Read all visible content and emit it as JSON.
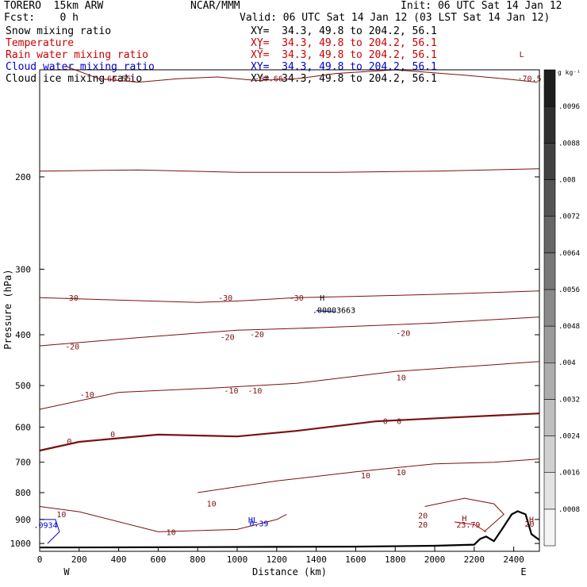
{
  "header": {
    "model": "TORERO  15km ARW",
    "org": "NCAR/MMM",
    "init": "Init: 06 UTC Sat 14 Jan 12",
    "fcst": "Fcst:    0 h",
    "valid": "Valid: 06 UTC Sat 14 Jan 12 (03 LST Sat 14 Jan 12)"
  },
  "fields": [
    {
      "name": "Snow mixing ratio",
      "xy": "",
      "color": "#000000"
    },
    {
      "name": "Temperature",
      "xy": "XY=  34.3, 49.8 to 204.2, 56.1",
      "color": "#cc0000"
    },
    {
      "name": "Rain water mixing ratio",
      "xy": "XY=  34.3, 49.8 to 204.2, 56.1",
      "color": "#cc0000"
    },
    {
      "name": "Cloud water mixing ratio",
      "xy": "XY=  34.3, 49.8 to 204.2, 56.1",
      "color": "#0000cc"
    },
    {
      "name": "Cloud ice mixing ratio",
      "xy": "XY=  34.3, 49.8 to 204.2, 56.1",
      "color": "#000000"
    }
  ],
  "snow_xy": "XY=  34.3, 49.8 to 204.2, 56.1",
  "colorbar": {
    "unit": "g kg⁻¹",
    "labels": [
      ".0008",
      ".0016",
      ".0024",
      ".0032",
      ".004",
      ".0048",
      ".0056",
      ".0064",
      ".0072",
      ".008",
      ".0088",
      ".0096"
    ]
  },
  "chart_data": {
    "type": "contour",
    "xlabel": "Distance (km)",
    "ylabel": "Pressure (hPa)",
    "xlim": [
      0,
      2530
    ],
    "ylim": [
      1035,
      125
    ],
    "x_ticks": [
      0,
      200,
      400,
      600,
      800,
      1000,
      1200,
      1400,
      1600,
      1800,
      2000,
      2200,
      2400
    ],
    "y_ticks": [
      200,
      300,
      400,
      500,
      600,
      700,
      800,
      900,
      1000
    ],
    "y_scale": "log",
    "endpoints": {
      "left": "W",
      "right": "E"
    },
    "terrain": [
      [
        0,
        1018
      ],
      [
        400,
        1017
      ],
      [
        800,
        1016
      ],
      [
        1200,
        1015
      ],
      [
        1600,
        1014
      ],
      [
        2000,
        1010
      ],
      [
        2200,
        1005
      ],
      [
        2230,
        980
      ],
      [
        2260,
        970
      ],
      [
        2300,
        990
      ],
      [
        2340,
        940
      ],
      [
        2390,
        880
      ],
      [
        2420,
        868
      ],
      [
        2460,
        880
      ],
      [
        2490,
        960
      ],
      [
        2530,
        985
      ]
    ],
    "temperature_contours": [
      {
        "label": "-66.55",
        "points": [
          [
            130,
            123
          ],
          [
            300,
            130
          ],
          [
            500,
            132
          ],
          [
            700,
            130
          ],
          [
            900,
            129
          ],
          [
            1100,
            131
          ],
          [
            1300,
            130
          ],
          [
            1500,
            127
          ],
          [
            1800,
            125
          ],
          [
            2150,
            128
          ],
          [
            2350,
            130
          ],
          [
            2520,
            132
          ]
        ]
      },
      {
        "label": "-30",
        "points": [
          [
            0,
            195
          ],
          [
            500,
            194
          ],
          [
            1000,
            196
          ],
          [
            1500,
            196
          ],
          [
            2000,
            195
          ],
          [
            2530,
            193
          ]
        ]
      },
      {
        "label": "-30",
        "points": [
          [
            0,
            340
          ],
          [
            800,
            347
          ],
          [
            1000,
            345
          ],
          [
            1300,
            340
          ],
          [
            1600,
            338
          ],
          [
            2000,
            335
          ],
          [
            2530,
            330
          ]
        ]
      },
      {
        "label": "-20",
        "points": [
          [
            0,
            420
          ],
          [
            500,
            405
          ],
          [
            1000,
            392
          ],
          [
            1400,
            388
          ],
          [
            2000,
            380
          ],
          [
            2530,
            370
          ]
        ]
      },
      {
        "label": "-10",
        "points": [
          [
            0,
            555
          ],
          [
            400,
            515
          ],
          [
            900,
            505
          ],
          [
            1300,
            495
          ],
          [
            1800,
            470
          ],
          [
            2530,
            450
          ]
        ]
      },
      {
        "label": "0",
        "points": [
          [
            0,
            665
          ],
          [
            200,
            640
          ],
          [
            600,
            620
          ],
          [
            1000,
            625
          ],
          [
            1300,
            610
          ],
          [
            1700,
            585
          ],
          [
            2100,
            575
          ],
          [
            2530,
            565
          ]
        ]
      },
      {
        "label": "10",
        "points": [
          [
            800,
            800
          ],
          [
            1200,
            760
          ],
          [
            1600,
            730
          ],
          [
            2000,
            705
          ],
          [
            2300,
            700
          ],
          [
            2530,
            690
          ]
        ]
      },
      {
        "label": "10",
        "points": [
          [
            0,
            850
          ],
          [
            200,
            870
          ],
          [
            600,
            950
          ],
          [
            1000,
            940
          ],
          [
            1200,
            900
          ],
          [
            1250,
            880
          ]
        ]
      },
      {
        "label": "20",
        "points": [
          [
            1950,
            850
          ],
          [
            2150,
            820
          ],
          [
            2300,
            840
          ],
          [
            2350,
            880
          ],
          [
            2250,
            950
          ]
        ]
      }
    ],
    "rain_water_contours": [
      {
        "label": "23.79",
        "points": [
          [
            2100,
            910
          ],
          [
            2200,
            920
          ],
          [
            2260,
            950
          ]
        ]
      }
    ],
    "cloud_water_contours": [
      {
        "label": ".00003663",
        "points": [
          [
            1400,
            360
          ],
          [
            1500,
            362
          ]
        ]
      },
      {
        "label": ".0934",
        "points": [
          [
            0,
            900
          ],
          [
            80,
            900
          ],
          [
            100,
            950
          ],
          [
            40,
            1000
          ]
        ]
      }
    ],
    "labels": [
      {
        "text": "-66.55",
        "x": 390,
        "p": 130
      },
      {
        "text": "-67.66",
        "x": 1160,
        "p": 130
      },
      {
        "text": "-70.5",
        "x": 2480,
        "p": 130
      },
      {
        "text": "L",
        "x": 1120,
        "p": 113
      },
      {
        "text": "L",
        "x": 2440,
        "p": 117
      },
      {
        "text": "-30",
        "x": 160,
        "p": 341
      },
      {
        "text": "-30",
        "x": 940,
        "p": 341
      },
      {
        "text": "-30",
        "x": 1300,
        "p": 341
      },
      {
        "text": "H",
        "x": 1430,
        "p": 341
      },
      {
        "text": ".00003663",
        "x": 1490,
        "p": 360
      },
      {
        "text": "-20",
        "x": 165,
        "p": 422
      },
      {
        "text": "-20",
        "x": 950,
        "p": 405
      },
      {
        "text": "-20",
        "x": 1100,
        "p": 400
      },
      {
        "text": "-20",
        "x": 1840,
        "p": 398
      },
      {
        "text": "-10",
        "x": 240,
        "p": 521
      },
      {
        "text": "-10",
        "x": 970,
        "p": 512
      },
      {
        "text": "-10",
        "x": 1090,
        "p": 512
      },
      {
        "text": "10",
        "x": 1830,
        "p": 484
      },
      {
        "text": "0",
        "x": 150,
        "p": 640
      },
      {
        "text": "0",
        "x": 370,
        "p": 620
      },
      {
        "text": "0",
        "x": 1750,
        "p": 586
      },
      {
        "text": "0",
        "x": 1820,
        "p": 586
      },
      {
        "text": "10",
        "x": 1650,
        "p": 743
      },
      {
        "text": "10",
        "x": 1830,
        "p": 733
      },
      {
        "text": "10",
        "x": 870,
        "p": 842
      },
      {
        "text": "10",
        "x": 110,
        "p": 882
      },
      {
        "text": "10",
        "x": 665,
        "p": 954
      },
      {
        "text": "HL",
        "x": 1080,
        "p": 903
      },
      {
        "text": "0.39",
        "x": 1110,
        "p": 918
      },
      {
        "text": "20",
        "x": 1940,
        "p": 886
      },
      {
        "text": "20",
        "x": 1940,
        "p": 922
      },
      {
        "text": "H",
        "x": 2150,
        "p": 897
      },
      {
        "text": "23.79",
        "x": 2170,
        "p": 922
      },
      {
        "text": "H",
        "x": 2490,
        "p": 902
      },
      {
        "text": "20",
        "x": 2480,
        "p": 920
      },
      {
        "text": ".0934",
        "x": 30,
        "p": 925
      }
    ]
  }
}
